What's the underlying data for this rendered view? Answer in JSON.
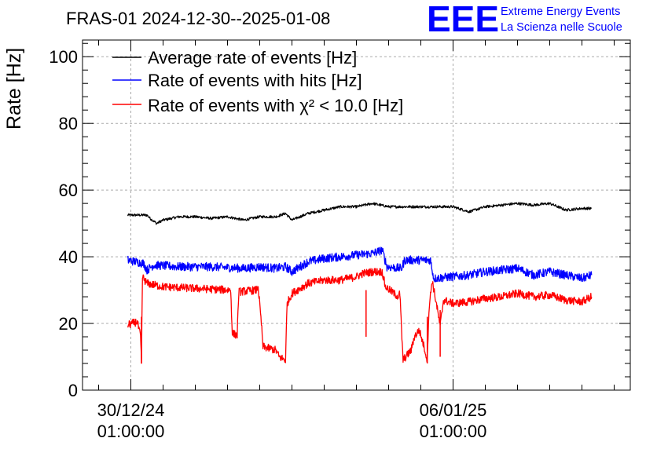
{
  "title": "FRAS-01 2024-12-30--2025-01-08",
  "branding": {
    "logo_text": "EEE",
    "line1": "Extreme Energy Events",
    "line2": "La Scienza nelle Scuole",
    "color": "#0000ff"
  },
  "chart_data": {
    "type": "line",
    "title": "FRAS-01 2024-12-30--2025-01-08",
    "xlabel": "",
    "ylabel": "Rate [Hz]",
    "ylim": [
      0,
      105
    ],
    "xlim": [
      -1.5,
      15.5
    ],
    "x_unit": "days since 30/12/24 01:00:00",
    "yticks": [
      0,
      20,
      40,
      60,
      80,
      100
    ],
    "xticks": [
      {
        "x": 0,
        "date": "30/12/24",
        "time": "01:00:00"
      },
      {
        "x": 10,
        "date": "06/01/25",
        "time": "01:00:00"
      }
    ],
    "grid": true,
    "legend_position": "top-left",
    "series": [
      {
        "name": "Average rate of events [Hz]",
        "color": "#000000",
        "noise": 0.4,
        "points": [
          [
            -0.1,
            52.5
          ],
          [
            0.5,
            52.5
          ],
          [
            0.6,
            51.5
          ],
          [
            0.8,
            50
          ],
          [
            1.0,
            51
          ],
          [
            1.5,
            52
          ],
          [
            2.0,
            52
          ],
          [
            2.5,
            51.5
          ],
          [
            3.0,
            52
          ],
          [
            3.5,
            51
          ],
          [
            4.0,
            52
          ],
          [
            4.5,
            52
          ],
          [
            4.8,
            53
          ],
          [
            5.0,
            51
          ],
          [
            5.5,
            53
          ],
          [
            6.0,
            54
          ],
          [
            6.5,
            55
          ],
          [
            7.0,
            55
          ],
          [
            7.5,
            56
          ],
          [
            8.0,
            55
          ],
          [
            9.0,
            55
          ],
          [
            10.0,
            55
          ],
          [
            10.5,
            53.5
          ],
          [
            11.0,
            55
          ],
          [
            12.0,
            56
          ],
          [
            12.5,
            55.5
          ],
          [
            13.0,
            56
          ],
          [
            13.5,
            54
          ],
          [
            14.0,
            54.5
          ],
          [
            14.3,
            54.5
          ]
        ]
      },
      {
        "name": "Rate of events with hits [Hz]",
        "color": "#0000ff",
        "noise": 1.3,
        "points": [
          [
            -0.1,
            39
          ],
          [
            0.4,
            38
          ],
          [
            0.5,
            36
          ],
          [
            0.7,
            37.5
          ],
          [
            1.5,
            37
          ],
          [
            2.5,
            37
          ],
          [
            3.5,
            36.5
          ],
          [
            4.0,
            37
          ],
          [
            4.5,
            36.5
          ],
          [
            4.8,
            37
          ],
          [
            5.0,
            35.5
          ],
          [
            5.5,
            38.5
          ],
          [
            6.0,
            39.5
          ],
          [
            7.0,
            40.5
          ],
          [
            7.5,
            41
          ],
          [
            7.8,
            42
          ],
          [
            7.95,
            37
          ],
          [
            8.4,
            36.5
          ],
          [
            8.5,
            39
          ],
          [
            9.3,
            39
          ],
          [
            9.4,
            33.5
          ],
          [
            10.5,
            34.5
          ],
          [
            11.0,
            35.5
          ],
          [
            11.5,
            36
          ],
          [
            12.0,
            36.5
          ],
          [
            12.5,
            34.5
          ],
          [
            13.0,
            35.5
          ],
          [
            13.5,
            34.5
          ],
          [
            14.0,
            33.5
          ],
          [
            14.3,
            34.5
          ]
        ]
      },
      {
        "name": "Rate of events with χ² < 10.0 [Hz]",
        "color": "#ff0000",
        "noise": 1.2,
        "points": [
          [
            -0.1,
            19.5
          ],
          [
            0.2,
            20.5
          ],
          [
            0.3,
            16
          ],
          [
            0.33,
            8
          ],
          [
            0.36,
            34
          ],
          [
            0.5,
            32
          ],
          [
            1.0,
            31
          ],
          [
            2.0,
            30.5
          ],
          [
            3.1,
            30
          ],
          [
            3.15,
            17
          ],
          [
            3.3,
            16.5
          ],
          [
            3.35,
            29.5
          ],
          [
            3.9,
            30
          ],
          [
            3.95,
            31
          ],
          [
            4.05,
            20
          ],
          [
            4.1,
            13
          ],
          [
            4.5,
            12
          ],
          [
            4.6,
            10
          ],
          [
            4.8,
            9
          ],
          [
            4.85,
            26
          ],
          [
            5.0,
            29
          ],
          [
            5.5,
            32
          ],
          [
            6.0,
            33
          ],
          [
            6.5,
            33
          ],
          [
            7.0,
            34
          ],
          [
            7.2,
            35
          ],
          [
            7.5,
            35.5
          ],
          [
            7.8,
            35.5
          ],
          [
            7.9,
            31
          ],
          [
            8.3,
            28
          ],
          [
            8.35,
            29
          ],
          [
            8.4,
            18
          ],
          [
            8.45,
            9
          ],
          [
            8.7,
            12
          ],
          [
            8.8,
            16
          ],
          [
            8.95,
            18
          ],
          [
            9.1,
            13
          ],
          [
            9.2,
            9
          ],
          [
            9.25,
            24
          ],
          [
            9.35,
            33
          ],
          [
            9.5,
            25
          ],
          [
            9.6,
            19
          ],
          [
            9.7,
            27
          ],
          [
            10.0,
            26
          ],
          [
            10.5,
            26.5
          ],
          [
            11.0,
            27.5
          ],
          [
            11.5,
            28
          ],
          [
            12.0,
            29
          ],
          [
            12.5,
            28
          ],
          [
            13.0,
            28.5
          ],
          [
            13.5,
            27
          ],
          [
            14.0,
            26.5
          ],
          [
            14.3,
            28
          ]
        ]
      }
    ],
    "spikes": [
      {
        "series": 2,
        "x": 0.33,
        "low": 8
      },
      {
        "series": 2,
        "x": 7.3,
        "low": 16
      },
      {
        "series": 2,
        "x": 9.2,
        "low": 8
      },
      {
        "series": 2,
        "x": 9.6,
        "low": 10
      }
    ]
  }
}
